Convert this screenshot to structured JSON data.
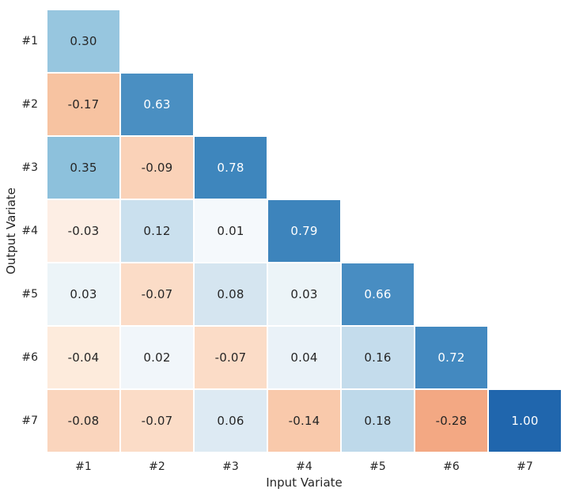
{
  "figure": {
    "background_color": "#ffffff",
    "text_color": "#262626"
  },
  "chart_data": {
    "type": "heatmap",
    "title": "",
    "xlabel": "Input Variate",
    "ylabel": "Output Variate",
    "x_ticklabels": [
      "#1",
      "#2",
      "#3",
      "#4",
      "#5",
      "#6",
      "#7"
    ],
    "y_ticklabels": [
      "#1",
      "#2",
      "#3",
      "#4",
      "#5",
      "#6",
      "#7"
    ],
    "layout": "lower-triangular",
    "value_range": [
      -1,
      1
    ],
    "colormap": "diverging RdBu-like (blue = positive, orange = negative)",
    "grid": false,
    "legend_position": "none",
    "rows": [
      {
        "y_label": "#1",
        "cells": [
          {
            "x_label": "#1",
            "value": 0.3,
            "label": "0.30",
            "bg": "#97c6df",
            "fg": "#262626"
          }
        ]
      },
      {
        "y_label": "#2",
        "cells": [
          {
            "x_label": "#1",
            "value": -0.17,
            "label": "-0.17",
            "bg": "#f7c3a1",
            "fg": "#262626"
          },
          {
            "x_label": "#2",
            "value": 0.63,
            "label": "0.63",
            "bg": "#4a8fc2",
            "fg": "#ffffff"
          }
        ]
      },
      {
        "y_label": "#3",
        "cells": [
          {
            "x_label": "#1",
            "value": 0.35,
            "label": "0.35",
            "bg": "#8dc1dc",
            "fg": "#262626"
          },
          {
            "x_label": "#2",
            "value": -0.09,
            "label": "-0.09",
            "bg": "#fad2b8",
            "fg": "#262626"
          },
          {
            "x_label": "#3",
            "value": 0.78,
            "label": "0.78",
            "bg": "#3e86bd",
            "fg": "#ffffff"
          }
        ]
      },
      {
        "y_label": "#4",
        "cells": [
          {
            "x_label": "#1",
            "value": -0.03,
            "label": "-0.03",
            "bg": "#fdeee4",
            "fg": "#262626"
          },
          {
            "x_label": "#2",
            "value": 0.12,
            "label": "0.12",
            "bg": "#cae0ee",
            "fg": "#262626"
          },
          {
            "x_label": "#3",
            "value": 0.01,
            "label": "0.01",
            "bg": "#f5f9fc",
            "fg": "#262626"
          },
          {
            "x_label": "#4",
            "value": 0.79,
            "label": "0.79",
            "bg": "#3d84bc",
            "fg": "#ffffff"
          }
        ]
      },
      {
        "y_label": "#5",
        "cells": [
          {
            "x_label": "#1",
            "value": 0.03,
            "label": "0.03",
            "bg": "#ecf4f8",
            "fg": "#262626"
          },
          {
            "x_label": "#2",
            "value": -0.07,
            "label": "-0.07",
            "bg": "#fbdcc7",
            "fg": "#262626"
          },
          {
            "x_label": "#3",
            "value": 0.08,
            "label": "0.08",
            "bg": "#d5e5f0",
            "fg": "#262626"
          },
          {
            "x_label": "#4",
            "value": 0.03,
            "label": "0.03",
            "bg": "#ecf4f8",
            "fg": "#262626"
          },
          {
            "x_label": "#5",
            "value": 0.66,
            "label": "0.66",
            "bg": "#488dc2",
            "fg": "#ffffff"
          }
        ]
      },
      {
        "y_label": "#6",
        "cells": [
          {
            "x_label": "#1",
            "value": -0.04,
            "label": "-0.04",
            "bg": "#fdebdc",
            "fg": "#262626"
          },
          {
            "x_label": "#2",
            "value": 0.02,
            "label": "0.02",
            "bg": "#f1f6fa",
            "fg": "#262626"
          },
          {
            "x_label": "#3",
            "value": -0.07,
            "label": "-0.07",
            "bg": "#fbdcc7",
            "fg": "#262626"
          },
          {
            "x_label": "#4",
            "value": 0.04,
            "label": "0.04",
            "bg": "#eaf2f8",
            "fg": "#262626"
          },
          {
            "x_label": "#5",
            "value": 0.16,
            "label": "0.16",
            "bg": "#c4dcec",
            "fg": "#262626"
          },
          {
            "x_label": "#6",
            "value": 0.72,
            "label": "0.72",
            "bg": "#4389c0",
            "fg": "#ffffff"
          }
        ]
      },
      {
        "y_label": "#7",
        "cells": [
          {
            "x_label": "#1",
            "value": -0.08,
            "label": "-0.08",
            "bg": "#fad5bd",
            "fg": "#262626"
          },
          {
            "x_label": "#2",
            "value": -0.07,
            "label": "-0.07",
            "bg": "#fbdcc7",
            "fg": "#262626"
          },
          {
            "x_label": "#3",
            "value": 0.06,
            "label": "0.06",
            "bg": "#ddeaf3",
            "fg": "#262626"
          },
          {
            "x_label": "#4",
            "value": -0.14,
            "label": "-0.14",
            "bg": "#f9c9ab",
            "fg": "#262626"
          },
          {
            "x_label": "#5",
            "value": 0.18,
            "label": "0.18",
            "bg": "#bed9ea",
            "fg": "#262626"
          },
          {
            "x_label": "#6",
            "value": -0.28,
            "label": "-0.28",
            "bg": "#f3a883",
            "fg": "#262626"
          },
          {
            "x_label": "#7",
            "value": 1.0,
            "label": "1.00",
            "bg": "#2066ad",
            "fg": "#ffffff"
          }
        ]
      }
    ]
  }
}
